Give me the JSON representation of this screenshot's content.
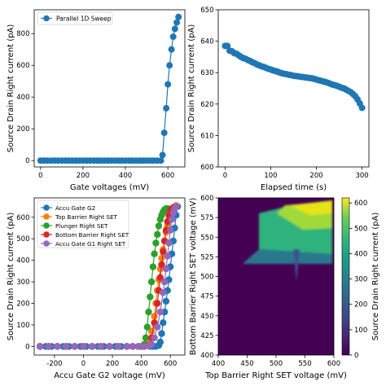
{
  "chart_data": [
    {
      "type": "line",
      "xlabel": "Gate voltages (mV)",
      "ylabel": "Source Drain Right current (pA)",
      "xlim": [
        -30,
        680
      ],
      "ylim": [
        -40,
        950
      ],
      "xticks": [
        0,
        200,
        400,
        600
      ],
      "yticks": [
        0,
        200,
        400,
        600,
        800
      ],
      "legend": "upper-left",
      "series": [
        {
          "name": "Parallel 1D Sweep",
          "color": "#1f77b4",
          "x": [
            0,
            17,
            33,
            50,
            67,
            83,
            100,
            117,
            133,
            150,
            167,
            183,
            200,
            217,
            233,
            250,
            267,
            283,
            300,
            317,
            333,
            350,
            367,
            383,
            400,
            417,
            433,
            450,
            467,
            483,
            500,
            517,
            533,
            550,
            567,
            575,
            583,
            592,
            600,
            608,
            617,
            625,
            633,
            642,
            650
          ],
          "y": [
            0,
            0,
            0,
            0,
            0,
            0,
            0,
            0,
            0,
            0,
            0,
            0,
            0,
            0,
            0,
            0,
            0,
            0,
            0,
            0,
            0,
            0,
            0,
            0,
            0,
            0,
            0,
            0,
            0,
            0,
            0,
            0,
            0,
            0,
            0,
            35,
            175,
            330,
            480,
            600,
            700,
            780,
            830,
            870,
            905
          ]
        }
      ]
    },
    {
      "type": "line",
      "xlabel": "Elapsed time (s)",
      "ylabel": "Source Drain Right current (pA)",
      "xlim": [
        -15,
        315
      ],
      "ylim": [
        600,
        650
      ],
      "xticks": [
        0,
        100,
        200,
        300
      ],
      "yticks": [
        600,
        610,
        620,
        630,
        640,
        650
      ],
      "series": [
        {
          "name": "",
          "color": "#1f77b4",
          "x": [
            0,
            5,
            10,
            15,
            20,
            25,
            30,
            35,
            40,
            45,
            50,
            55,
            60,
            65,
            70,
            75,
            80,
            85,
            90,
            95,
            100,
            105,
            110,
            115,
            120,
            125,
            130,
            135,
            140,
            145,
            150,
            155,
            160,
            165,
            170,
            175,
            180,
            185,
            190,
            195,
            200,
            205,
            210,
            215,
            220,
            225,
            230,
            235,
            240,
            245,
            250,
            255,
            260,
            265,
            270,
            275,
            280,
            285,
            290,
            295,
            300
          ],
          "y": [
            638.5,
            638.5,
            637.0,
            636.8,
            636.2,
            636.0,
            635.5,
            635.0,
            634.6,
            634.4,
            634.0,
            633.7,
            633.3,
            633.0,
            632.6,
            632.3,
            632.0,
            631.8,
            631.5,
            631.2,
            631.0,
            630.7,
            630.5,
            630.3,
            630.0,
            629.8,
            629.6,
            629.5,
            629.3,
            629.2,
            629.0,
            628.9,
            628.8,
            628.7,
            628.6,
            628.5,
            628.4,
            628.3,
            628.2,
            628.0,
            627.8,
            627.6,
            627.4,
            627.2,
            627.0,
            626.8,
            626.5,
            626.2,
            626.0,
            625.8,
            625.5,
            625.2,
            625.0,
            624.6,
            624.2,
            623.8,
            623.2,
            622.5,
            621.5,
            620.2,
            618.8
          ]
        }
      ]
    },
    {
      "type": "line",
      "xlabel": "Accu Gate G2 voltage (mV)",
      "ylabel": "Source Drain Right current (pA)",
      "xlim": [
        -340,
        700
      ],
      "ylim": [
        -40,
        690
      ],
      "xticks": [
        -200,
        0,
        200,
        400,
        600
      ],
      "yticks": [
        0,
        100,
        200,
        300,
        400,
        500,
        600
      ],
      "legend": "upper-left",
      "series": [
        {
          "name": "Accu Gate G2",
          "color": "#1f77b4",
          "x": [
            -300,
            -260,
            -220,
            -180,
            -140,
            -100,
            -60,
            -20,
            20,
            60,
            100,
            140,
            180,
            220,
            260,
            300,
            340,
            380,
            420,
            460,
            480,
            500,
            520,
            530,
            540,
            550,
            560,
            570,
            580,
            590,
            600,
            610,
            620,
            630,
            640,
            650
          ],
          "y": [
            0,
            0,
            0,
            0,
            0,
            0,
            0,
            0,
            0,
            0,
            0,
            0,
            0,
            0,
            0,
            0,
            0,
            0,
            0,
            0,
            0,
            0,
            5,
            20,
            60,
            110,
            160,
            210,
            260,
            310,
            370,
            430,
            490,
            550,
            610,
            650
          ]
        },
        {
          "name": "Top Barrier Right SET",
          "color": "#ff7f0e",
          "x": [
            -300,
            -240,
            -180,
            -120,
            -60,
            0,
            60,
            120,
            180,
            240,
            300,
            340,
            380,
            410,
            430,
            450,
            470,
            490,
            500,
            510,
            520,
            530,
            540,
            550,
            560,
            570,
            580,
            590,
            600,
            610,
            620,
            630,
            640
          ],
          "y": [
            0,
            0,
            0,
            0,
            0,
            0,
            0,
            0,
            0,
            0,
            0,
            0,
            0,
            0,
            5,
            25,
            70,
            140,
            200,
            260,
            310,
            360,
            410,
            450,
            490,
            530,
            560,
            590,
            610,
            630,
            645,
            650,
            655
          ]
        },
        {
          "name": "Plunger Right SET",
          "color": "#2ca02c",
          "x": [
            -300,
            -240,
            -180,
            -120,
            -60,
            0,
            60,
            120,
            180,
            240,
            300,
            340,
            380,
            400,
            420,
            430,
            440,
            450,
            460,
            470,
            480,
            490,
            500,
            510,
            520,
            530,
            540,
            550,
            560,
            570,
            580
          ],
          "y": [
            0,
            0,
            0,
            0,
            0,
            0,
            0,
            0,
            0,
            0,
            0,
            0,
            0,
            0,
            10,
            40,
            90,
            160,
            230,
            300,
            370,
            430,
            480,
            520,
            560,
            590,
            610,
            625,
            635,
            640,
            640
          ]
        },
        {
          "name": "Bottom Barrier Right SET",
          "color": "#d62728",
          "x": [
            -300,
            -240,
            -180,
            -120,
            -60,
            0,
            60,
            120,
            180,
            240,
            300,
            340,
            380,
            420,
            450,
            470,
            490,
            510,
            520,
            530,
            540,
            550,
            560,
            570,
            580,
            590,
            600,
            610,
            620
          ],
          "y": [
            0,
            0,
            0,
            0,
            0,
            0,
            0,
            0,
            0,
            0,
            0,
            0,
            0,
            0,
            5,
            40,
            110,
            200,
            260,
            320,
            380,
            440,
            490,
            540,
            580,
            610,
            630,
            640,
            645
          ]
        },
        {
          "name": "Accu Gate G1 Right SET",
          "color": "#9467bd",
          "x": [
            -300,
            -240,
            -180,
            -120,
            -60,
            0,
            60,
            120,
            180,
            240,
            300,
            340,
            380,
            420,
            450,
            470,
            490,
            510,
            530,
            550,
            560,
            570,
            580,
            590,
            600,
            610,
            620,
            630,
            640
          ],
          "y": [
            0,
            0,
            0,
            0,
            0,
            0,
            0,
            0,
            0,
            0,
            0,
            0,
            0,
            0,
            2,
            10,
            40,
            90,
            160,
            250,
            300,
            360,
            420,
            480,
            540,
            590,
            620,
            640,
            650
          ]
        }
      ]
    },
    {
      "type": "heatmap",
      "xlabel": "Top Barrier Right SET voltage (mV)",
      "ylabel": "Bottom Barrier Right SET voltage (mV)",
      "colorbar_label": "Source Drain Right current (pA)",
      "colormap": "viridis",
      "xlim": [
        400,
        600
      ],
      "ylim": [
        400,
        600
      ],
      "xticks": [
        400,
        450,
        500,
        550,
        600
      ],
      "yticks": [
        400,
        425,
        450,
        475,
        500,
        525,
        550,
        575,
        600
      ],
      "clim": [
        0,
        620
      ],
      "cticks": [
        0,
        100,
        200,
        300,
        400,
        500,
        600
      ]
    }
  ]
}
